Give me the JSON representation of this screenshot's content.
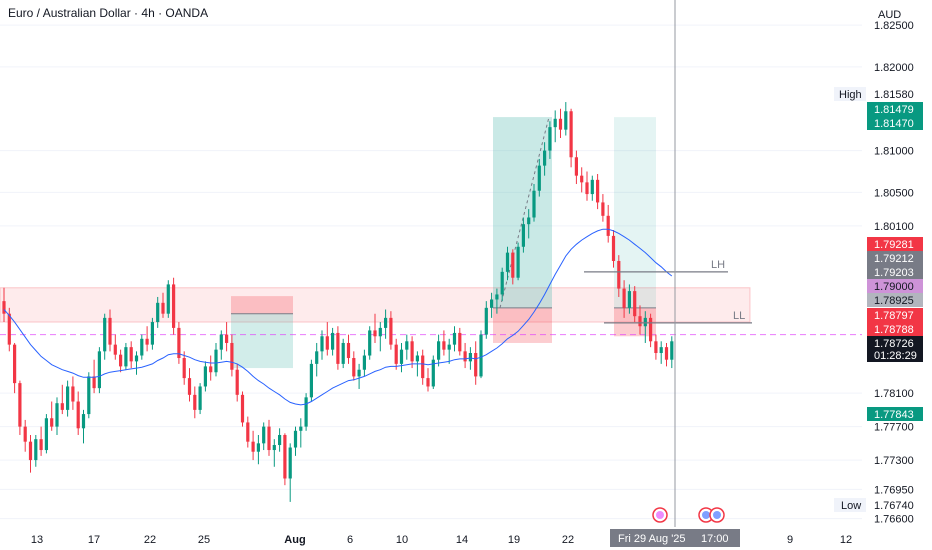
{
  "header": {
    "title": "Euro / Australian Dollar · 4h · OANDA",
    "currency": "AUD"
  },
  "colors": {
    "up": "#089981",
    "down": "#f23645",
    "ma": "#2962ff",
    "zone": "#f23645",
    "tp": "#4db6ac",
    "marker": "#e040fb"
  },
  "chart_data": {
    "type": "candlestick",
    "symbol": "Euro / Australian Dollar",
    "timeframe": "4h",
    "source": "OANDA",
    "y_range": [
      1.765,
      1.828
    ],
    "y_ticks": [
      "1.82500",
      "1.82000",
      "1.81000",
      "1.80500",
      "1.80100",
      "1.78100",
      "1.77700",
      "1.77300",
      "1.76950",
      "1.76600"
    ],
    "x_ticks": [
      "13",
      "17",
      "22",
      "25",
      "Aug",
      "6",
      "10",
      "14",
      "19",
      "22",
      "9",
      "12"
    ],
    "high_label": "High",
    "low_label": "Low",
    "price_labels": [
      {
        "text": "1.81580",
        "kind": "high"
      },
      {
        "text": "1.81479",
        "kind": "green"
      },
      {
        "text": "1.81470",
        "kind": "green"
      },
      {
        "text": "1.79281",
        "kind": "red"
      },
      {
        "text": "1.79212",
        "kind": "gray"
      },
      {
        "text": "1.79203",
        "kind": "gray"
      },
      {
        "text": "1.79000",
        "kind": "purple"
      },
      {
        "text": "1.78925",
        "kind": "lightgray"
      },
      {
        "text": "1.78797",
        "kind": "red"
      },
      {
        "text": "1.78788",
        "kind": "red"
      },
      {
        "text": "1.78726",
        "kind": "current"
      },
      {
        "text": "01:28:29",
        "kind": "countdown"
      },
      {
        "text": "1.77843",
        "kind": "green"
      },
      {
        "text": "1.76740",
        "kind": "low"
      }
    ],
    "annotations": [
      {
        "text": "LH",
        "price": 1.7955
      },
      {
        "text": "LL",
        "price": 1.7894
      }
    ],
    "dashed_level": 1.788,
    "crosshair_label": "Fri 29 Aug '25",
    "crosshair_time": "17:00",
    "last_price": 1.78726,
    "countdown": "01:28:29",
    "high": 1.8158,
    "low": 1.7674,
    "candles": [
      [
        1.792,
        1.7936,
        1.7895,
        1.7905
      ],
      [
        1.7905,
        1.7912,
        1.786,
        1.7868
      ],
      [
        1.7868,
        1.787,
        1.781,
        1.7822
      ],
      [
        1.7822,
        1.7825,
        1.776,
        1.777
      ],
      [
        1.777,
        1.7778,
        1.774,
        1.7752
      ],
      [
        1.7752,
        1.776,
        1.7715,
        1.773
      ],
      [
        1.773,
        1.776,
        1.7722,
        1.7755
      ],
      [
        1.7755,
        1.777,
        1.7735,
        1.7742
      ],
      [
        1.7742,
        1.7785,
        1.7738,
        1.778
      ],
      [
        1.778,
        1.78,
        1.7765,
        1.777
      ],
      [
        1.777,
        1.7805,
        1.776,
        1.7798
      ],
      [
        1.7798,
        1.782,
        1.7785,
        1.779
      ],
      [
        1.779,
        1.7825,
        1.7782,
        1.7818
      ],
      [
        1.7818,
        1.783,
        1.779,
        1.78
      ],
      [
        1.78,
        1.7812,
        1.776,
        1.7768
      ],
      [
        1.7768,
        1.779,
        1.775,
        1.7785
      ],
      [
        1.7785,
        1.7835,
        1.778,
        1.783
      ],
      [
        1.783,
        1.785,
        1.781,
        1.7816
      ],
      [
        1.7816,
        1.7865,
        1.781,
        1.786
      ],
      [
        1.786,
        1.7905,
        1.785,
        1.79
      ],
      [
        1.79,
        1.791,
        1.786,
        1.7868
      ],
      [
        1.7868,
        1.788,
        1.785,
        1.7856
      ],
      [
        1.7856,
        1.7862,
        1.7835,
        1.7842
      ],
      [
        1.7842,
        1.787,
        1.7838,
        1.7865
      ],
      [
        1.7865,
        1.7872,
        1.784,
        1.7848
      ],
      [
        1.7848,
        1.786,
        1.7832,
        1.7855
      ],
      [
        1.7855,
        1.788,
        1.785,
        1.7875
      ],
      [
        1.7875,
        1.789,
        1.786,
        1.7868
      ],
      [
        1.7868,
        1.79,
        1.7862,
        1.7895
      ],
      [
        1.7895,
        1.7925,
        1.7888,
        1.7918
      ],
      [
        1.7918,
        1.793,
        1.79,
        1.7905
      ],
      [
        1.7905,
        1.7945,
        1.79,
        1.794
      ],
      [
        1.794,
        1.7948,
        1.788,
        1.7888
      ],
      [
        1.7888,
        1.7895,
        1.7845,
        1.7852
      ],
      [
        1.7852,
        1.786,
        1.782,
        1.7828
      ],
      [
        1.7828,
        1.784,
        1.78,
        1.7808
      ],
      [
        1.7808,
        1.7818,
        1.778,
        1.779
      ],
      [
        1.779,
        1.7822,
        1.7785,
        1.7818
      ],
      [
        1.7818,
        1.7848,
        1.7812,
        1.7842
      ],
      [
        1.7842,
        1.7855,
        1.7825,
        1.7835
      ],
      [
        1.7835,
        1.787,
        1.783,
        1.7862
      ],
      [
        1.7862,
        1.7885,
        1.785,
        1.788
      ],
      [
        1.788,
        1.7895,
        1.786,
        1.787
      ],
      [
        1.787,
        1.788,
        1.783,
        1.7838
      ],
      [
        1.7838,
        1.7845,
        1.78,
        1.7808
      ],
      [
        1.7808,
        1.7812,
        1.777,
        1.7775
      ],
      [
        1.7775,
        1.7782,
        1.7745,
        1.7752
      ],
      [
        1.7752,
        1.7765,
        1.773,
        1.774
      ],
      [
        1.774,
        1.776,
        1.7725,
        1.775
      ],
      [
        1.775,
        1.7775,
        1.7742,
        1.777
      ],
      [
        1.777,
        1.7778,
        1.7735,
        1.7742
      ],
      [
        1.7742,
        1.7755,
        1.7722,
        1.7748
      ],
      [
        1.7748,
        1.7768,
        1.774,
        1.776
      ],
      [
        1.776,
        1.7762,
        1.77,
        1.7708
      ],
      [
        1.7708,
        1.775,
        1.768,
        1.7745
      ],
      [
        1.7745,
        1.777,
        1.7735,
        1.7765
      ],
      [
        1.7765,
        1.778,
        1.7745,
        1.777
      ],
      [
        1.777,
        1.781,
        1.7765,
        1.7805
      ],
      [
        1.7805,
        1.785,
        1.78,
        1.7845
      ],
      [
        1.7845,
        1.787,
        1.783,
        1.786
      ],
      [
        1.786,
        1.7885,
        1.785,
        1.7878
      ],
      [
        1.7878,
        1.7895,
        1.7855,
        1.7862
      ],
      [
        1.7862,
        1.7888,
        1.7855,
        1.7882
      ],
      [
        1.7882,
        1.789,
        1.7838,
        1.7845
      ],
      [
        1.7845,
        1.7875,
        1.784,
        1.787
      ],
      [
        1.787,
        1.788,
        1.7845,
        1.7852
      ],
      [
        1.7852,
        1.786,
        1.7825,
        1.783
      ],
      [
        1.783,
        1.7845,
        1.7815,
        1.7838
      ],
      [
        1.7838,
        1.7862,
        1.783,
        1.7855
      ],
      [
        1.7855,
        1.789,
        1.785,
        1.7885
      ],
      [
        1.7885,
        1.7905,
        1.787,
        1.7878
      ],
      [
        1.7878,
        1.7895,
        1.786,
        1.7888
      ],
      [
        1.7888,
        1.791,
        1.7875,
        1.79
      ],
      [
        1.79,
        1.7908,
        1.7862,
        1.7868
      ],
      [
        1.7868,
        1.7875,
        1.7838,
        1.7845
      ],
      [
        1.7845,
        1.787,
        1.7835,
        1.7862
      ],
      [
        1.7862,
        1.788,
        1.785,
        1.7872
      ],
      [
        1.7872,
        1.7878,
        1.784,
        1.7848
      ],
      [
        1.7848,
        1.786,
        1.783,
        1.7855
      ],
      [
        1.7855,
        1.7862,
        1.782,
        1.7828
      ],
      [
        1.7828,
        1.784,
        1.7812,
        1.7818
      ],
      [
        1.7818,
        1.7855,
        1.7815,
        1.785
      ],
      [
        1.785,
        1.788,
        1.7842,
        1.7872
      ],
      [
        1.7872,
        1.7885,
        1.7855,
        1.7862
      ],
      [
        1.7862,
        1.7875,
        1.7845,
        1.7868
      ],
      [
        1.7868,
        1.789,
        1.786,
        1.7882
      ],
      [
        1.7882,
        1.7888,
        1.7855,
        1.786
      ],
      [
        1.786,
        1.787,
        1.784,
        1.7848
      ],
      [
        1.7848,
        1.7865,
        1.7838,
        1.7858
      ],
      [
        1.7858,
        1.7872,
        1.782,
        1.783
      ],
      [
        1.783,
        1.7885,
        1.7828,
        1.788
      ],
      [
        1.788,
        1.792,
        1.7875,
        1.7912
      ],
      [
        1.7912,
        1.793,
        1.79,
        1.7922
      ],
      [
        1.7922,
        1.7935,
        1.7905,
        1.7928
      ],
      [
        1.7928,
        1.796,
        1.792,
        1.7955
      ],
      [
        1.7955,
        1.7985,
        1.7945,
        1.7978
      ],
      [
        1.7978,
        1.7982,
        1.794,
        1.7948
      ],
      [
        1.7948,
        1.799,
        1.7945,
        1.7985
      ],
      [
        1.7985,
        1.802,
        1.7978,
        1.8012
      ],
      [
        1.8012,
        1.803,
        1.7995,
        1.802
      ],
      [
        1.802,
        1.806,
        1.8015,
        1.8052
      ],
      [
        1.8052,
        1.809,
        1.8045,
        1.8082
      ],
      [
        1.8082,
        1.811,
        1.807,
        1.81
      ],
      [
        1.81,
        1.8135,
        1.809,
        1.8128
      ],
      [
        1.8128,
        1.8148,
        1.811,
        1.8138
      ],
      [
        1.8138,
        1.815,
        1.8115,
        1.8125
      ],
      [
        1.8125,
        1.8158,
        1.8118,
        1.8147
      ],
      [
        1.8147,
        1.815,
        1.808,
        1.8092
      ],
      [
        1.8092,
        1.81,
        1.806,
        1.807
      ],
      [
        1.807,
        1.808,
        1.805,
        1.8062
      ],
      [
        1.8062,
        1.8075,
        1.804,
        1.8048
      ],
      [
        1.8048,
        1.807,
        1.804,
        1.8065
      ],
      [
        1.8065,
        1.8072,
        1.803,
        1.8038
      ],
      [
        1.8038,
        1.8048,
        1.8015,
        1.8022
      ],
      [
        1.8022,
        1.8035,
        1.799,
        1.7998
      ],
      [
        1.7998,
        1.8005,
        1.796,
        1.7968
      ],
      [
        1.7968,
        1.7975,
        1.7925,
        1.7935
      ],
      [
        1.7935,
        1.7945,
        1.79,
        1.7912
      ],
      [
        1.7912,
        1.794,
        1.7905,
        1.7932
      ],
      [
        1.7932,
        1.7938,
        1.7895,
        1.7902
      ],
      [
        1.7902,
        1.7915,
        1.788,
        1.789
      ],
      [
        1.789,
        1.7908,
        1.787,
        1.79
      ],
      [
        1.79,
        1.7905,
        1.7865,
        1.7872
      ],
      [
        1.7872,
        1.788,
        1.785,
        1.7858
      ],
      [
        1.7858,
        1.7872,
        1.7845,
        1.7865
      ],
      [
        1.7865,
        1.787,
        1.7842,
        1.785
      ],
      [
        1.785,
        1.7878,
        1.784,
        1.7872
      ]
    ],
    "ma_values": [
      1.791,
      1.7903,
      1.7895,
      1.7886,
      1.7877,
      1.7868,
      1.7861,
      1.7854,
      1.7849,
      1.7844,
      1.7841,
      1.7838,
      1.7836,
      1.7834,
      1.7831,
      1.7829,
      1.7829,
      1.7829,
      1.783,
      1.7833,
      1.7835,
      1.7836,
      1.7837,
      1.7838,
      1.7839,
      1.784,
      1.7841,
      1.7843,
      1.7845,
      1.7849,
      1.7852,
      1.7856,
      1.7857,
      1.7857,
      1.7855,
      1.7853,
      1.785,
      1.7848,
      1.7847,
      1.7846,
      1.7846,
      1.7847,
      1.7848,
      1.7847,
      1.7845,
      1.7841,
      1.7836,
      1.783,
      1.7825,
      1.7821,
      1.7816,
      1.7812,
      1.7808,
      1.7803,
      1.7799,
      1.7797,
      1.7796,
      1.7797,
      1.78,
      1.7804,
      1.7808,
      1.7812,
      1.7816,
      1.7819,
      1.7822,
      1.7825,
      1.7826,
      1.7828,
      1.783,
      1.7833,
      1.7836,
      1.7838,
      1.7841,
      1.7842,
      1.7842,
      1.7843,
      1.7844,
      1.7845,
      1.7845,
      1.7845,
      1.7844,
      1.7845,
      1.7846,
      1.7847,
      1.7848,
      1.785,
      1.7851,
      1.7851,
      1.7852,
      1.7851,
      1.7853,
      1.7856,
      1.786,
      1.7864,
      1.7869,
      1.7875,
      1.7879,
      1.7884,
      1.7891,
      1.7898,
      1.7907,
      1.7917,
      1.7928,
      1.794,
      1.7952,
      1.7963,
      1.7974,
      1.7982,
      1.7988,
      1.7993,
      1.7997,
      1.8001,
      1.8004,
      1.8006,
      1.8006,
      1.8004,
      1.8001,
      1.7997,
      1.7993,
      1.7988,
      1.7983,
      1.7978,
      1.7972,
      1.7966,
      1.7961,
      1.7955,
      1.795
    ]
  }
}
